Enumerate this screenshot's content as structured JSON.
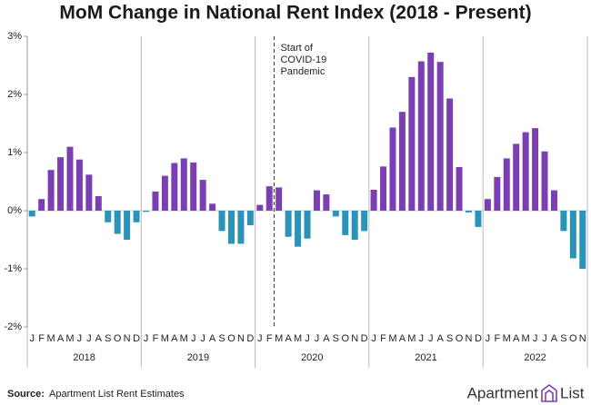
{
  "chart_data": {
    "type": "bar",
    "title": "MoM Change in National Rent Index (2018 - Present)",
    "categories": [
      "J",
      "F",
      "M",
      "A",
      "M",
      "J",
      "J",
      "A",
      "S",
      "O",
      "N",
      "D",
      "J",
      "F",
      "M",
      "A",
      "M",
      "J",
      "J",
      "A",
      "S",
      "O",
      "N",
      "D",
      "J",
      "F",
      "M",
      "A",
      "M",
      "J",
      "J",
      "A",
      "S",
      "O",
      "N",
      "D",
      "J",
      "F",
      "M",
      "A",
      "M",
      "J",
      "J",
      "A",
      "S",
      "O",
      "N",
      "D",
      "J",
      "F",
      "M",
      "A",
      "M",
      "J",
      "J",
      "A",
      "S",
      "O",
      "N"
    ],
    "years": [
      "2018",
      "2019",
      "2020",
      "2021",
      "2022"
    ],
    "values": [
      -0.1,
      0.2,
      0.7,
      0.92,
      1.1,
      0.88,
      0.62,
      0.25,
      -0.2,
      -0.4,
      -0.5,
      -0.2,
      -0.02,
      0.33,
      0.6,
      0.82,
      0.9,
      0.83,
      0.53,
      0.12,
      -0.35,
      -0.57,
      -0.57,
      -0.25,
      0.1,
      0.42,
      0.4,
      -0.45,
      -0.62,
      -0.48,
      0.35,
      0.28,
      -0.1,
      -0.42,
      -0.5,
      -0.35,
      0.36,
      0.76,
      1.43,
      1.7,
      2.3,
      2.57,
      2.72,
      2.56,
      1.93,
      0.75,
      -0.03,
      -0.28,
      0.2,
      0.58,
      0.9,
      1.15,
      1.35,
      1.42,
      1.02,
      0.35,
      -0.35,
      -0.82,
      -1.0
    ],
    "positive_color": "#7b3fb3",
    "negative_color": "#2a93b8",
    "ylim": [
      -2,
      3
    ],
    "yticks": [
      {
        "value": -2,
        "label": "-2%"
      },
      {
        "value": -1,
        "label": "-1%"
      },
      {
        "value": 0,
        "label": "0%"
      },
      {
        "value": 1,
        "label": "1%"
      },
      {
        "value": 2,
        "label": "2%"
      },
      {
        "value": 3,
        "label": "3%"
      }
    ],
    "annotation": [
      "Start of",
      "COVID-19",
      "Pandemic"
    ],
    "source_label": "Source:",
    "source": "Apartment List Rent Estimates",
    "logo": [
      "Apartment",
      "List"
    ]
  }
}
